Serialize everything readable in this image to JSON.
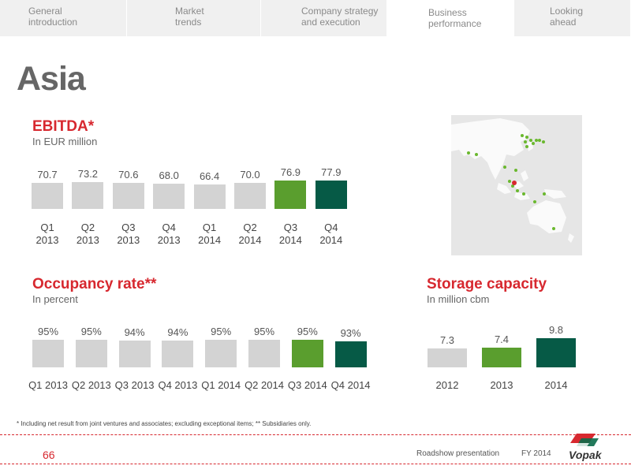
{
  "nav": {
    "tabs": [
      {
        "line1": "General",
        "line2": "introduction"
      },
      {
        "line1": "Market",
        "line2": "trends"
      },
      {
        "line1": "Company strategy",
        "line2": "and execution"
      },
      {
        "line1": "Business",
        "line2": "performance"
      },
      {
        "line1": "Looking",
        "line2": "ahead"
      }
    ],
    "active_index": 3
  },
  "title": "Asia",
  "colors": {
    "accent": "#d7282f",
    "grey_bar": "#d3d3d3",
    "green": "#5a9e2e",
    "dark_green": "#065a46"
  },
  "ebitda": {
    "title": "EBITDA*",
    "subtitle": "In EUR million"
  },
  "occupancy": {
    "title": "Occupancy rate**",
    "subtitle": "In percent"
  },
  "storage": {
    "title": "Storage capacity",
    "subtitle": "In million cbm"
  },
  "chart_data": [
    {
      "type": "bar",
      "categories": [
        "Q1 2013",
        "Q2 2013",
        "Q3 2013",
        "Q4 2013",
        "Q1 2014",
        "Q2 2014",
        "Q3 2014",
        "Q4 2014"
      ],
      "values": [
        70.7,
        73.2,
        70.6,
        68.0,
        66.4,
        70.0,
        76.9,
        77.9
      ],
      "labels": [
        "70.7",
        "73.2",
        "70.6",
        "68.0",
        "66.4",
        "70.0",
        "76.9",
        "77.9"
      ],
      "title": "EBITDA*",
      "ylabel": "In EUR million"
    },
    {
      "type": "bar",
      "categories": [
        "Q1 2013",
        "Q2 2013",
        "Q3 2013",
        "Q4 2013",
        "Q1 2014",
        "Q2 2014",
        "Q3 2014",
        "Q4 2014"
      ],
      "values": [
        95,
        95,
        94,
        94,
        95,
        95,
        95,
        93
      ],
      "labels": [
        "95%",
        "95%",
        "94%",
        "94%",
        "95%",
        "95%",
        "95%",
        "93%"
      ],
      "title": "Occupancy rate**",
      "ylabel": "In percent"
    },
    {
      "type": "bar",
      "categories": [
        "2012",
        "2013",
        "2014"
      ],
      "values": [
        7.3,
        7.4,
        9.8
      ],
      "labels": [
        "7.3",
        "7.4",
        "9.8"
      ],
      "title": "Storage capacity",
      "ylabel": "In million cbm"
    }
  ],
  "footnote": "* Including net result from joint ventures and associates; excluding exceptional items; ** Subsidiaries only.",
  "footer": {
    "page": "66",
    "presentation": "Roadshow presentation",
    "period": "FY 2014",
    "logo_text": "Vopak"
  }
}
